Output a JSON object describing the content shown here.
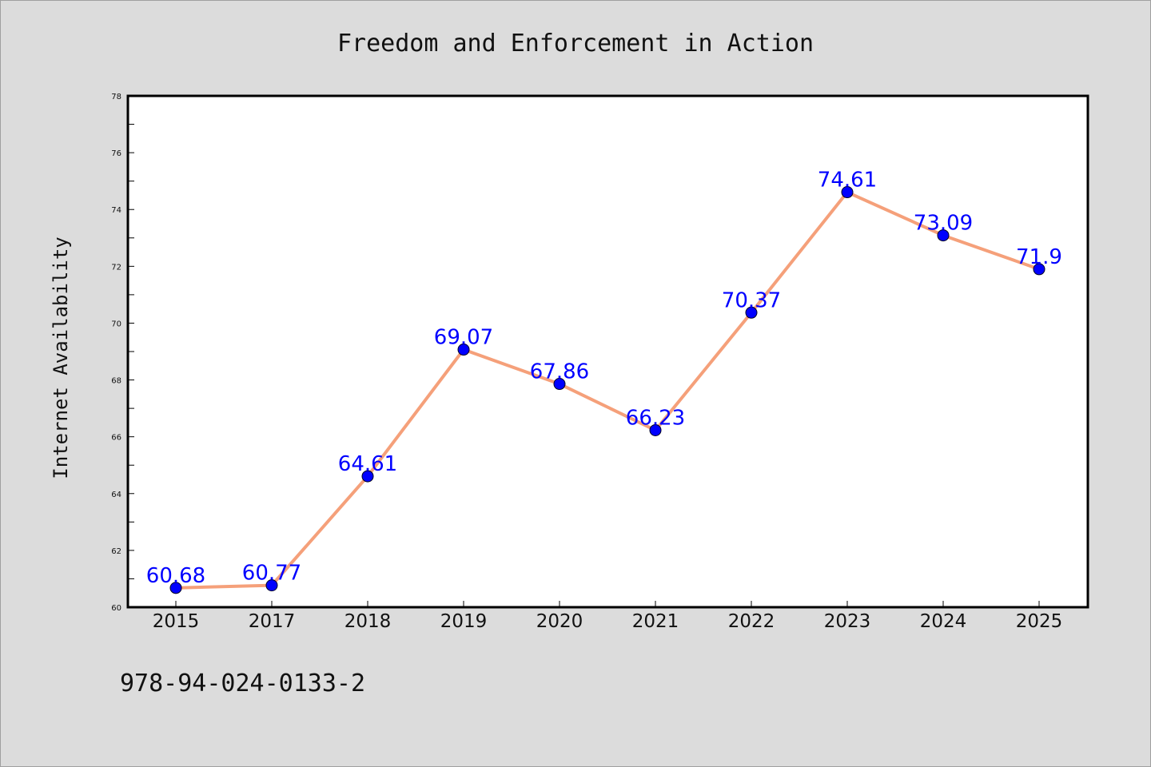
{
  "chart_data": {
    "type": "line",
    "title": "Freedom and Enforcement in Action",
    "xlabel": "",
    "ylabel": "Internet Availability",
    "categories": [
      "2015",
      "2017",
      "2018",
      "2019",
      "2020",
      "2021",
      "2022",
      "2023",
      "2024",
      "2025"
    ],
    "series": [
      {
        "values": [
          60.68,
          60.77,
          64.61,
          69.07,
          67.86,
          66.23,
          70.37,
          74.61,
          73.09,
          71.9
        ],
        "labels": [
          "60.68",
          "60.77",
          "64.61",
          "69.07",
          "67.86",
          "66.23",
          "70.37",
          "74.61",
          "73.09",
          "71.9"
        ],
        "line_color": "#f5a07a",
        "marker_color": "#0000ff"
      }
    ],
    "ylim": [
      60,
      78
    ],
    "yticks": [
      "60",
      "62",
      "64",
      "66",
      "68",
      "70",
      "72",
      "74",
      "76",
      "78"
    ],
    "grid": false,
    "legend": "none",
    "annotation": "978-94-024-0133-2"
  }
}
